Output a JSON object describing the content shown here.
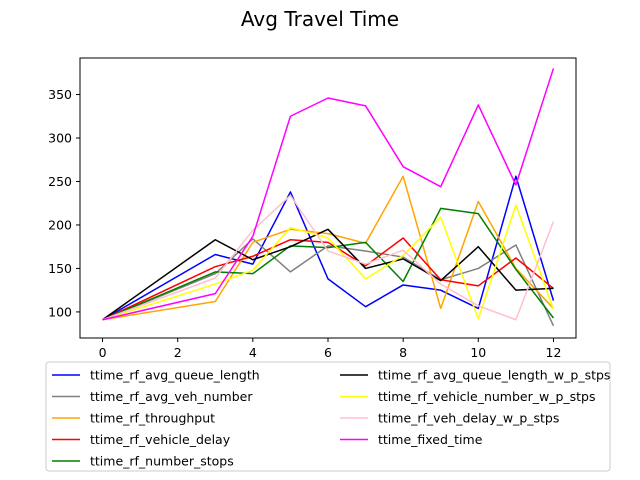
{
  "chart_data": {
    "type": "line",
    "title": "Avg Travel Time",
    "xlabel": "",
    "ylabel": "",
    "xlim": [
      -0.6,
      12.6
    ],
    "ylim": [
      70,
      392
    ],
    "xticks": [
      0,
      2,
      4,
      6,
      8,
      10,
      12
    ],
    "yticks": [
      100,
      150,
      200,
      250,
      300,
      350
    ],
    "grid": false,
    "legend_placement": "below",
    "x": [
      0,
      3,
      4,
      5,
      6,
      7,
      8,
      9,
      10,
      11,
      12
    ],
    "series": [
      {
        "name": "ttime_rf_avg_queue_length",
        "color": "#0000ff",
        "values": [
          91,
          166,
          155,
          238,
          138,
          106,
          131,
          125,
          104,
          256,
          113
        ]
      },
      {
        "name": "ttime_rf_avg_veh_number",
        "color": "#808080",
        "values": [
          91,
          144,
          184,
          146,
          176,
          170,
          163,
          137,
          150,
          177,
          84
        ]
      },
      {
        "name": "ttime_rf_throughput",
        "color": "#ffa500",
        "values": [
          91,
          112,
          180,
          195,
          190,
          179,
          256,
          104,
          227,
          150,
          104
        ]
      },
      {
        "name": "ttime_rf_vehicle_delay",
        "color": "#ff0000",
        "values": [
          91,
          152,
          164,
          183,
          180,
          153,
          185,
          137,
          130,
          162,
          127
        ]
      },
      {
        "name": "ttime_rf_number_stops",
        "color": "#008000",
        "values": [
          91,
          146,
          144,
          176,
          174,
          180,
          135,
          219,
          213,
          149,
          93
        ]
      },
      {
        "name": "ttime_rf_avg_queue_length_w_p_stps",
        "color": "#000000",
        "values": [
          91,
          183,
          160,
          175,
          195,
          150,
          161,
          136,
          175,
          125,
          127
        ]
      },
      {
        "name": "ttime_rf_vehicle_number_w_p_stps",
        "color": "#ffff00",
        "values": [
          91,
          132,
          148,
          197,
          185,
          138,
          165,
          209,
          92,
          223,
          103
        ]
      },
      {
        "name": "ttime_rf_veh_delay_w_p_stps",
        "color": "#ffc0cb",
        "values": [
          91,
          139,
          194,
          234,
          170,
          155,
          171,
          132,
          107,
          91,
          204
        ]
      },
      {
        "name": "ttime_fixed_time",
        "color": "#ff00ff",
        "values": [
          91,
          121,
          187,
          325,
          346,
          337,
          267,
          244,
          338,
          246,
          380
        ]
      }
    ]
  }
}
